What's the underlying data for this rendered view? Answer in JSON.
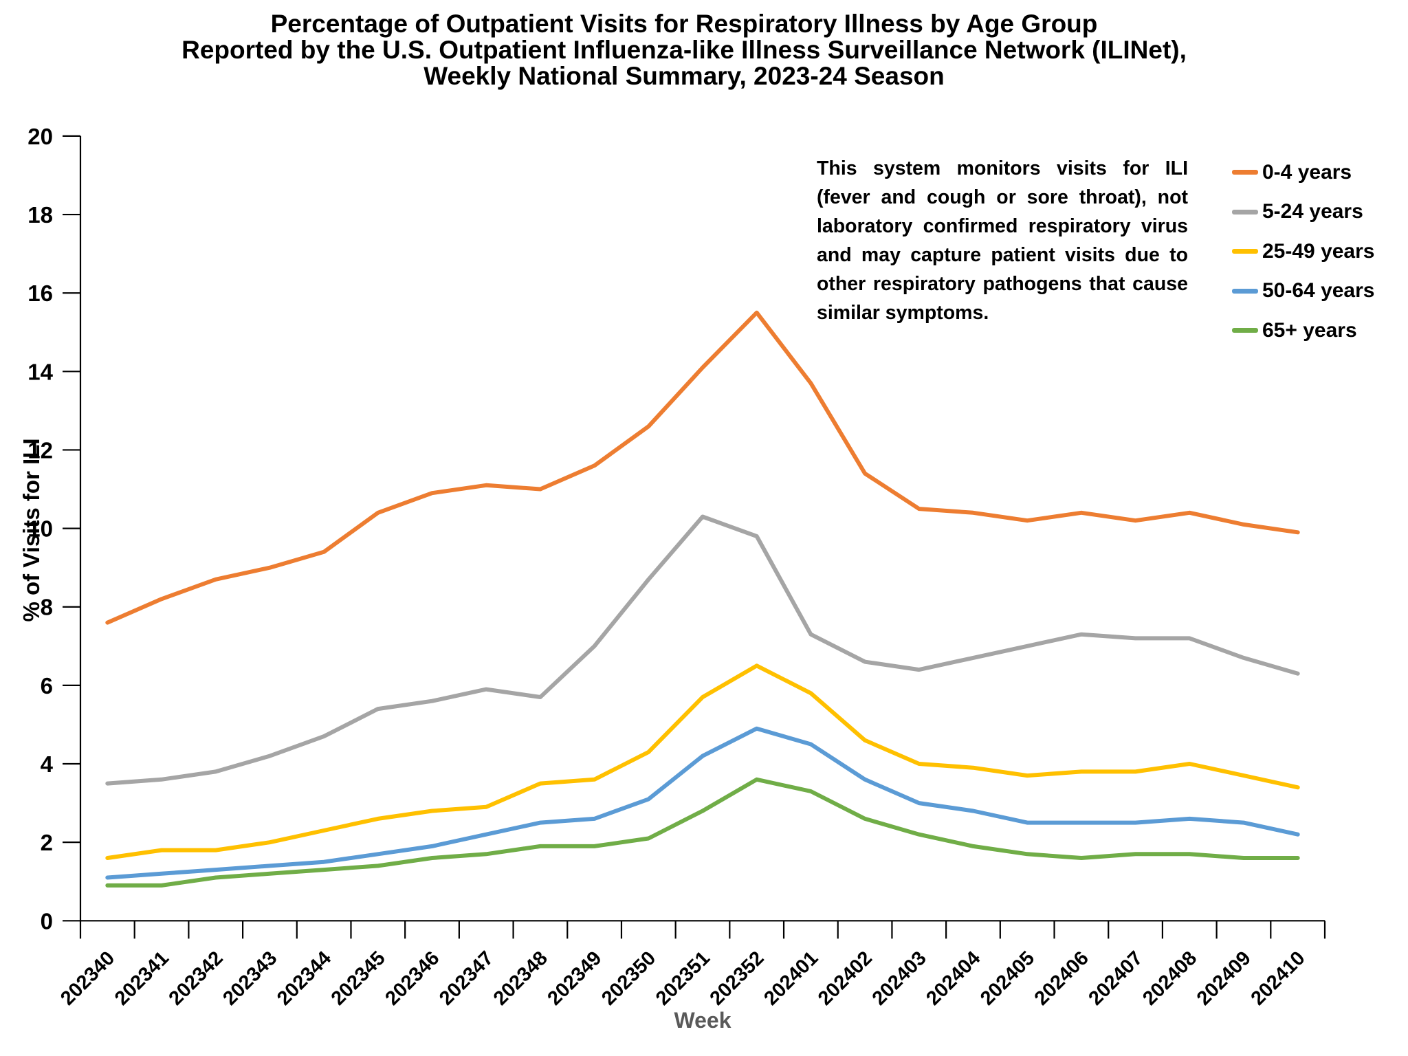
{
  "title": {
    "line1": "Percentage of Outpatient Visits for Respiratory Illness by Age Group",
    "line2": "Reported by the U.S. Outpatient Influenza-like Illness Surveillance Network (ILINet),",
    "line3": "Weekly National Summary, 2023-24 Season"
  },
  "annotation": "This system monitors visits for ILI (fever and cough or sore throat), not laboratory confirmed respiratory virus and may capture patient visits due to other respiratory pathogens that cause similar symptoms.",
  "axes": {
    "y_label": "% of Visits for ILI",
    "x_label": "Week",
    "y_ticks": [
      0,
      2,
      4,
      6,
      8,
      10,
      12,
      14,
      16,
      18,
      20
    ]
  },
  "chart_data": {
    "type": "line",
    "title": "Percentage of Outpatient Visits for Respiratory Illness by Age Group, ILINet Weekly National Summary, 2023-24 Season",
    "xlabel": "Week",
    "ylabel": "% of Visits for ILI",
    "ylim": [
      0,
      20
    ],
    "grid": false,
    "legend_position": "right",
    "categories": [
      "202340",
      "202341",
      "202342",
      "202343",
      "202344",
      "202345",
      "202346",
      "202347",
      "202348",
      "202349",
      "202350",
      "202351",
      "202352",
      "202401",
      "202402",
      "202403",
      "202404",
      "202405",
      "202406",
      "202407",
      "202408",
      "202409",
      "202410"
    ],
    "series": [
      {
        "name": "0-4 years",
        "color": "#ED7D31",
        "values": [
          7.6,
          8.2,
          8.7,
          9.0,
          9.4,
          10.4,
          10.9,
          11.1,
          11.0,
          11.6,
          12.6,
          14.1,
          15.5,
          13.7,
          11.4,
          10.5,
          10.4,
          10.2,
          10.4,
          10.2,
          10.4,
          10.1,
          9.9
        ]
      },
      {
        "name": "5-24 years",
        "color": "#A5A5A5",
        "values": [
          3.5,
          3.6,
          3.8,
          4.2,
          4.7,
          5.4,
          5.6,
          5.9,
          5.7,
          7.0,
          8.7,
          10.3,
          9.8,
          7.3,
          6.6,
          6.4,
          6.7,
          7.0,
          7.3,
          7.2,
          7.2,
          6.7,
          6.3
        ]
      },
      {
        "name": "25-49 years",
        "color": "#FFC000",
        "values": [
          1.6,
          1.8,
          1.8,
          2.0,
          2.3,
          2.6,
          2.8,
          2.9,
          3.5,
          3.6,
          4.3,
          5.7,
          6.5,
          5.8,
          4.6,
          4.0,
          3.9,
          3.7,
          3.8,
          3.8,
          4.0,
          3.7,
          3.4
        ]
      },
      {
        "name": "50-64 years",
        "color": "#5B9BD5",
        "values": [
          1.1,
          1.2,
          1.3,
          1.4,
          1.5,
          1.7,
          1.9,
          2.2,
          2.5,
          2.6,
          3.1,
          4.2,
          4.9,
          4.5,
          3.6,
          3.0,
          2.8,
          2.5,
          2.5,
          2.5,
          2.6,
          2.5,
          2.2
        ]
      },
      {
        "name": "65+ years",
        "color": "#70AD47",
        "values": [
          0.9,
          0.9,
          1.1,
          1.2,
          1.3,
          1.4,
          1.6,
          1.7,
          1.9,
          1.9,
          2.1,
          2.8,
          3.6,
          3.3,
          2.6,
          2.2,
          1.9,
          1.7,
          1.6,
          1.7,
          1.7,
          1.6,
          1.6
        ]
      }
    ]
  }
}
